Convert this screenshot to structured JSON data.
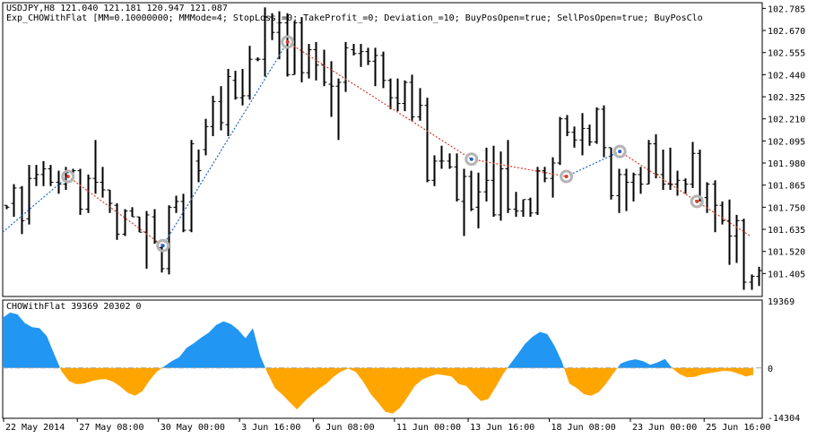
{
  "header": {
    "symbol_line": "USDJPY,H8  121.040 121.181 120.947 121.087",
    "ea_line": "Exp_CHOWithFlat [MM=0.10000000; MMMode=4; StopLoss_=0; TakeProfit_=0; Deviation_=10; BuyPosOpen=true; SellPosOpen=true; BuyPosClo"
  },
  "indicator": {
    "label": "CHOWithFlat 39369 20302 0"
  },
  "colors": {
    "background": "#ffffff",
    "frame": "#000000",
    "candle": "#000000",
    "bull_fill": "#2196f3",
    "bear_fill": "#ffa500",
    "buy_trade_line": "#1e64c8",
    "sell_trade_line": "#dc3c28",
    "trade_marker": "#b4b4b4",
    "zero_line": "#a0a0a0"
  },
  "chart_data": [
    {
      "type": "candlestick",
      "panel": "price",
      "symbol": "USDJPY",
      "timeframe": "H8",
      "ylim": [
        101.29,
        102.81
      ],
      "y_ticks": [
        "102.785",
        "102.670",
        "102.555",
        "102.440",
        "102.325",
        "102.210",
        "102.095",
        "101.980",
        "101.865",
        "101.750",
        "101.635",
        "101.520",
        "101.405"
      ],
      "y_tick_values": [
        102.785,
        102.67,
        102.555,
        102.44,
        102.325,
        102.21,
        102.095,
        101.98,
        101.865,
        101.75,
        101.635,
        101.52,
        101.405
      ],
      "x_ticks": [
        "22 May 2014",
        "27 May 08:00",
        "30 May 00:00",
        "3 Jun 16:00",
        "6 Jun 08:00",
        "11 Jun 00:00",
        "13 Jun 16:00",
        "18 Jun 08:00",
        "23 Jun 00:00",
        "25 Jun 16:00"
      ],
      "x_tick_bar_index": [
        0,
        10,
        21,
        32,
        42,
        53,
        63,
        74,
        85,
        95
      ],
      "bars_total": 103,
      "ohlc": [
        [
          101.76,
          101.76,
          101.74,
          101.75
        ],
        [
          101.77,
          101.87,
          101.7,
          101.85
        ],
        [
          101.85,
          101.86,
          101.61,
          101.68
        ],
        [
          101.69,
          101.97,
          101.66,
          101.9
        ],
        [
          101.9,
          101.97,
          101.86,
          101.92
        ],
        [
          101.92,
          101.99,
          101.86,
          101.95
        ],
        [
          101.95,
          101.97,
          101.86,
          101.88
        ],
        [
          101.88,
          101.94,
          101.82,
          101.87
        ],
        [
          101.87,
          101.96,
          101.84,
          101.93
        ],
        [
          101.93,
          101.95,
          101.9,
          101.94
        ],
        [
          101.94,
          101.95,
          101.71,
          101.74
        ],
        [
          101.74,
          101.92,
          101.72,
          101.9
        ],
        [
          101.9,
          102.1,
          101.82,
          101.88
        ],
        [
          101.88,
          101.96,
          101.8,
          101.84
        ],
        [
          101.84,
          101.84,
          101.72,
          101.77
        ],
        [
          101.76,
          101.77,
          101.58,
          101.61
        ],
        [
          101.61,
          101.74,
          101.6,
          101.73
        ],
        [
          101.73,
          101.75,
          101.7,
          101.7
        ],
        [
          101.7,
          101.7,
          101.62,
          101.62
        ],
        [
          101.62,
          101.73,
          101.43,
          101.71
        ],
        [
          101.7,
          101.74,
          101.56,
          101.57
        ],
        [
          101.54,
          101.55,
          101.41,
          101.43
        ],
        [
          101.43,
          101.76,
          101.4,
          101.75
        ],
        [
          101.75,
          101.81,
          101.72,
          101.78
        ],
        [
          101.78,
          101.82,
          101.62,
          101.63
        ],
        [
          101.63,
          102.1,
          101.62,
          102.08
        ],
        [
          101.99,
          102.05,
          101.88,
          101.94
        ],
        [
          102.05,
          102.21,
          102.02,
          102.17
        ],
        [
          102.17,
          102.33,
          102.12,
          102.3
        ],
        [
          102.3,
          102.38,
          102.15,
          102.19
        ],
        [
          102.18,
          102.47,
          102.12,
          102.43
        ],
        [
          102.41,
          102.46,
          102.31,
          102.32
        ],
        [
          102.32,
          102.47,
          102.28,
          102.33
        ],
        [
          102.33,
          102.59,
          102.31,
          102.52
        ],
        [
          102.52,
          102.53,
          102.51,
          102.52
        ],
        [
          102.52,
          102.79,
          102.43,
          102.74
        ],
        [
          102.74,
          102.76,
          102.62,
          102.66
        ],
        [
          102.66,
          102.77,
          102.52,
          102.71
        ],
        [
          102.71,
          102.76,
          102.43,
          102.44
        ],
        [
          102.44,
          102.72,
          102.44,
          102.71
        ],
        [
          102.71,
          102.74,
          102.4,
          102.45
        ],
        [
          102.45,
          102.6,
          102.42,
          102.57
        ],
        [
          102.57,
          102.61,
          102.41,
          102.49
        ],
        [
          102.49,
          102.57,
          102.38,
          102.4
        ],
        [
          102.39,
          102.51,
          102.22,
          102.38
        ],
        [
          102.38,
          102.42,
          102.1,
          102.4
        ],
        [
          102.4,
          102.61,
          102.35,
          102.58
        ],
        [
          102.57,
          102.6,
          102.54,
          102.55
        ],
        [
          102.55,
          102.6,
          102.48,
          102.56
        ],
        [
          102.56,
          102.58,
          102.49,
          102.51
        ],
        [
          102.51,
          102.58,
          102.38,
          102.54
        ],
        [
          102.54,
          102.56,
          102.37,
          102.41
        ],
        [
          102.41,
          102.42,
          102.26,
          102.32
        ],
        [
          102.32,
          102.42,
          102.25,
          102.29
        ],
        [
          102.29,
          102.41,
          102.25,
          102.4
        ],
        [
          102.4,
          102.44,
          102.2,
          102.22
        ],
        [
          102.22,
          102.37,
          102.2,
          102.28
        ],
        [
          102.28,
          102.32,
          101.88,
          101.89
        ],
        [
          101.89,
          102.02,
          101.86,
          101.99
        ],
        [
          101.99,
          102.07,
          101.95,
          101.99
        ],
        [
          101.99,
          102.03,
          101.95,
          101.96
        ],
        [
          101.96,
          102.03,
          101.78,
          101.79
        ],
        [
          101.78,
          101.95,
          101.6,
          101.91
        ],
        [
          101.91,
          101.94,
          101.73,
          101.74
        ],
        [
          101.75,
          101.93,
          101.64,
          101.83
        ],
        [
          101.83,
          102.06,
          101.78,
          101.89
        ],
        [
          101.89,
          102.07,
          101.7,
          101.71
        ],
        [
          101.71,
          102.04,
          101.68,
          101.95
        ],
        [
          101.95,
          102.1,
          101.72,
          101.74
        ],
        [
          101.74,
          101.83,
          101.7,
          101.73
        ],
        [
          101.73,
          101.79,
          101.7,
          101.79
        ],
        [
          101.79,
          101.8,
          101.7,
          101.72
        ],
        [
          101.72,
          101.96,
          101.71,
          101.94
        ],
        [
          101.94,
          101.96,
          101.88,
          101.9
        ],
        [
          101.9,
          102.01,
          101.8,
          101.98
        ],
        [
          101.98,
          102.22,
          101.97,
          102.21
        ],
        [
          102.21,
          102.23,
          102.12,
          102.14
        ],
        [
          102.14,
          102.17,
          102.06,
          102.1
        ],
        [
          102.1,
          102.24,
          102.02,
          102.16
        ],
        [
          102.16,
          102.18,
          102.07,
          102.09
        ],
        [
          102.09,
          102.27,
          102.08,
          102.26
        ],
        [
          102.26,
          102.28,
          102.01,
          102.06
        ],
        [
          102.06,
          102.06,
          101.79,
          101.81
        ],
        [
          101.81,
          101.95,
          101.72,
          101.92
        ],
        [
          101.92,
          101.95,
          101.73,
          101.88
        ],
        [
          101.88,
          101.93,
          101.78,
          101.92
        ],
        [
          101.92,
          101.96,
          101.82,
          101.87
        ],
        [
          101.87,
          102.1,
          101.87,
          102.08
        ],
        [
          102.08,
          102.13,
          101.9,
          101.92
        ],
        [
          101.92,
          102.05,
          101.84,
          101.87
        ],
        [
          101.87,
          102.06,
          101.84,
          101.87
        ],
        [
          101.87,
          101.94,
          101.81,
          101.89
        ],
        [
          101.89,
          101.9,
          101.82,
          101.87
        ],
        [
          101.87,
          102.09,
          101.85,
          102.03
        ],
        [
          102.03,
          102.05,
          101.78,
          101.8
        ],
        [
          101.8,
          101.88,
          101.72,
          101.87
        ],
        [
          101.87,
          101.89,
          101.62,
          101.76
        ],
        [
          101.76,
          101.78,
          101.66,
          101.68
        ],
        [
          101.68,
          101.79,
          101.45,
          101.6
        ],
        [
          101.6,
          101.71,
          101.46,
          101.68
        ],
        [
          101.68,
          101.69,
          101.32,
          101.36
        ],
        [
          101.36,
          101.4,
          101.32,
          101.39
        ],
        [
          101.39,
          101.44,
          101.34,
          101.42
        ]
      ],
      "trades": [
        {
          "bar": 0,
          "price": 101.62,
          "side": "start"
        },
        {
          "bar": 11,
          "price": 101.91,
          "side": "sell"
        },
        {
          "bar": 27,
          "price": 101.55,
          "side": "buy"
        },
        {
          "bar": 48,
          "price": 102.61,
          "side": "sell"
        },
        {
          "bar": 79,
          "price": 102.0,
          "side": "buy"
        },
        {
          "bar": 95,
          "price": 101.91,
          "side": "sell"
        },
        {
          "bar": 104,
          "price": 102.04,
          "side": "buy"
        },
        {
          "bar": 117,
          "price": 101.78,
          "side": "sell"
        },
        {
          "bar": 126,
          "price": 101.6,
          "side": "end"
        }
      ]
    },
    {
      "type": "area",
      "panel": "indicator",
      "name": "CHOWithFlat",
      "ylim": [
        -14304,
        19369
      ],
      "y_ticks": [
        "19369",
        "0",
        "-14304"
      ],
      "y_tick_values": [
        19369,
        0,
        -14304
      ],
      "zero_line": true,
      "values_by_bar": [
        14500,
        16000,
        15500,
        13000,
        11800,
        11500,
        9200,
        4000,
        -1000,
        -3800,
        -4700,
        -4500,
        -3900,
        -3400,
        -3200,
        -4000,
        -5400,
        -7200,
        -8000,
        -6700,
        -3500,
        -1000,
        500,
        2000,
        3100,
        5800,
        7200,
        8800,
        10200,
        12400,
        13500,
        12700,
        11000,
        8600,
        11500,
        3500,
        -1500,
        -5800,
        -7700,
        -9900,
        -12000,
        -9700,
        -7800,
        -6000,
        -4500,
        -2500,
        -1000,
        -200,
        -1200,
        -4000,
        -7500,
        -10000,
        -12700,
        -13200,
        -11500,
        -8500,
        -5200,
        -3400,
        -2500,
        -1800,
        -2100,
        -2500,
        -4700,
        -5200,
        -7600,
        -9600,
        -9000,
        -5500,
        -1800,
        1200,
        4000,
        7000,
        9000,
        10400,
        9800,
        6400,
        1800,
        -4500,
        -5800,
        -7600,
        -8000,
        -7000,
        -4500,
        -1500,
        1300,
        2100,
        2500,
        2000,
        900,
        1600,
        2600,
        -100,
        -1800,
        -2700,
        -2600,
        -1900,
        -1500,
        -1200,
        -800,
        -1000,
        -1700,
        -2500,
        -2000
      ]
    }
  ]
}
